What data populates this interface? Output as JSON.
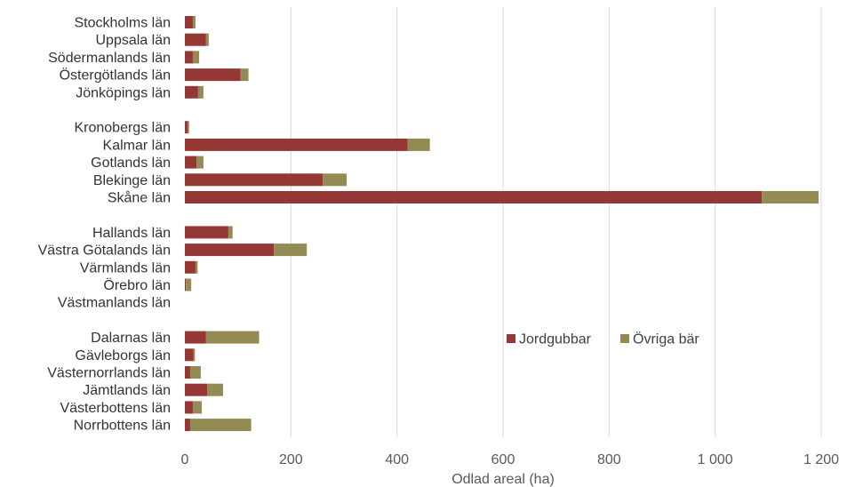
{
  "chart_data": {
    "type": "bar",
    "orientation": "horizontal",
    "stacked": true,
    "title": "",
    "xlabel": "Odlad areal (ha)",
    "ylabel": "",
    "xlim": [
      0,
      1200
    ],
    "x_ticks": [
      0,
      200,
      400,
      600,
      800,
      1000,
      1200
    ],
    "x_tick_labels": [
      "0",
      "200",
      "400",
      "600",
      "800",
      "1 000",
      "1 200"
    ],
    "grid": "vertical",
    "legend_position": "inside-right",
    "categories": [
      "Stockholms län",
      "Uppsala län",
      "Södermanlands län",
      "Östergötlands län",
      "Jönköpings län",
      "Kronobergs län",
      "Kalmar län",
      "Gotlands län",
      "Blekinge län",
      "Skåne län",
      "Hallands län",
      "Västra Götalands län",
      "Värmlands län",
      "Örebro län",
      "Västmanlands län",
      "Dalarnas län",
      "Gävleborgs län",
      "Västernorrlands län",
      "Jämtlands län",
      "Västerbottens län",
      "Norrbottens län"
    ],
    "category_groups": [
      5,
      5,
      5,
      6
    ],
    "series": [
      {
        "name": "Jordgubbar",
        "color": "#953735",
        "values": [
          15,
          40,
          15,
          105,
          25,
          5,
          420,
          22,
          260,
          1088,
          82,
          168,
          20,
          2,
          0,
          40,
          16,
          10,
          42,
          15,
          10
        ]
      },
      {
        "name": "Övriga bär",
        "color": "#948A54",
        "values": [
          5,
          5,
          12,
          15,
          10,
          3,
          42,
          13,
          45,
          107,
          8,
          62,
          4,
          10,
          0,
          100,
          3,
          20,
          30,
          17,
          115
        ]
      }
    ]
  }
}
